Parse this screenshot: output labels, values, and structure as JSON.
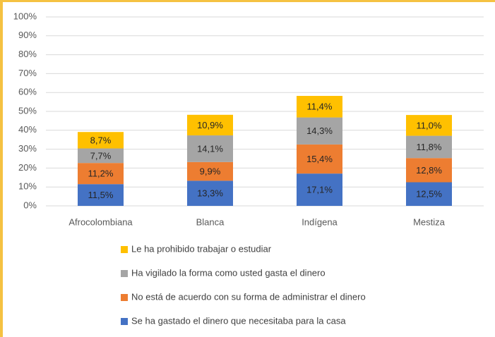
{
  "chart_data": {
    "type": "stacked_bar",
    "categories": [
      "Afrocolombiana",
      "Blanca",
      "Indígena",
      "Mestiza"
    ],
    "series": [
      {
        "name": "Se ha gastado el dinero que necesitaba para la casa",
        "color": "#4472c4",
        "values": [
          11.5,
          13.3,
          17.1,
          12.5
        ],
        "value_labels": [
          "11,5%",
          "13,3%",
          "17,1%",
          "12,5%"
        ]
      },
      {
        "name": "No está de acuerdo con su forma de administrar el dinero",
        "color": "#ed7d31",
        "values": [
          11.2,
          9.9,
          15.4,
          12.8
        ],
        "value_labels": [
          "11,2%",
          "9,9%",
          "15,4%",
          "12,8%"
        ]
      },
      {
        "name": "Ha vigilado la forma como usted gasta el dinero",
        "color": "#a5a5a5",
        "values": [
          7.7,
          14.1,
          14.3,
          11.8
        ],
        "value_labels": [
          "7,7%",
          "14,1%",
          "14,3%",
          "11,8%"
        ]
      },
      {
        "name": "Le ha prohibido trabajar o estudiar",
        "color": "#ffc000",
        "values": [
          8.7,
          10.9,
          11.4,
          11.0
        ],
        "value_labels": [
          "8,7%",
          "10,9%",
          "11,4%",
          "11,0%"
        ]
      }
    ],
    "ylim": [
      0,
      100
    ],
    "yticks": [
      {
        "value": 0,
        "label": "0%"
      },
      {
        "value": 10,
        "label": "10%"
      },
      {
        "value": 20,
        "label": "20%"
      },
      {
        "value": 30,
        "label": "30%"
      },
      {
        "value": 40,
        "label": "40%"
      },
      {
        "value": 50,
        "label": "50%"
      },
      {
        "value": 60,
        "label": "60%"
      },
      {
        "value": 70,
        "label": "70%"
      },
      {
        "value": 80,
        "label": "80%"
      },
      {
        "value": 90,
        "label": "90%"
      },
      {
        "value": 100,
        "label": "100%"
      }
    ],
    "grid": true
  }
}
